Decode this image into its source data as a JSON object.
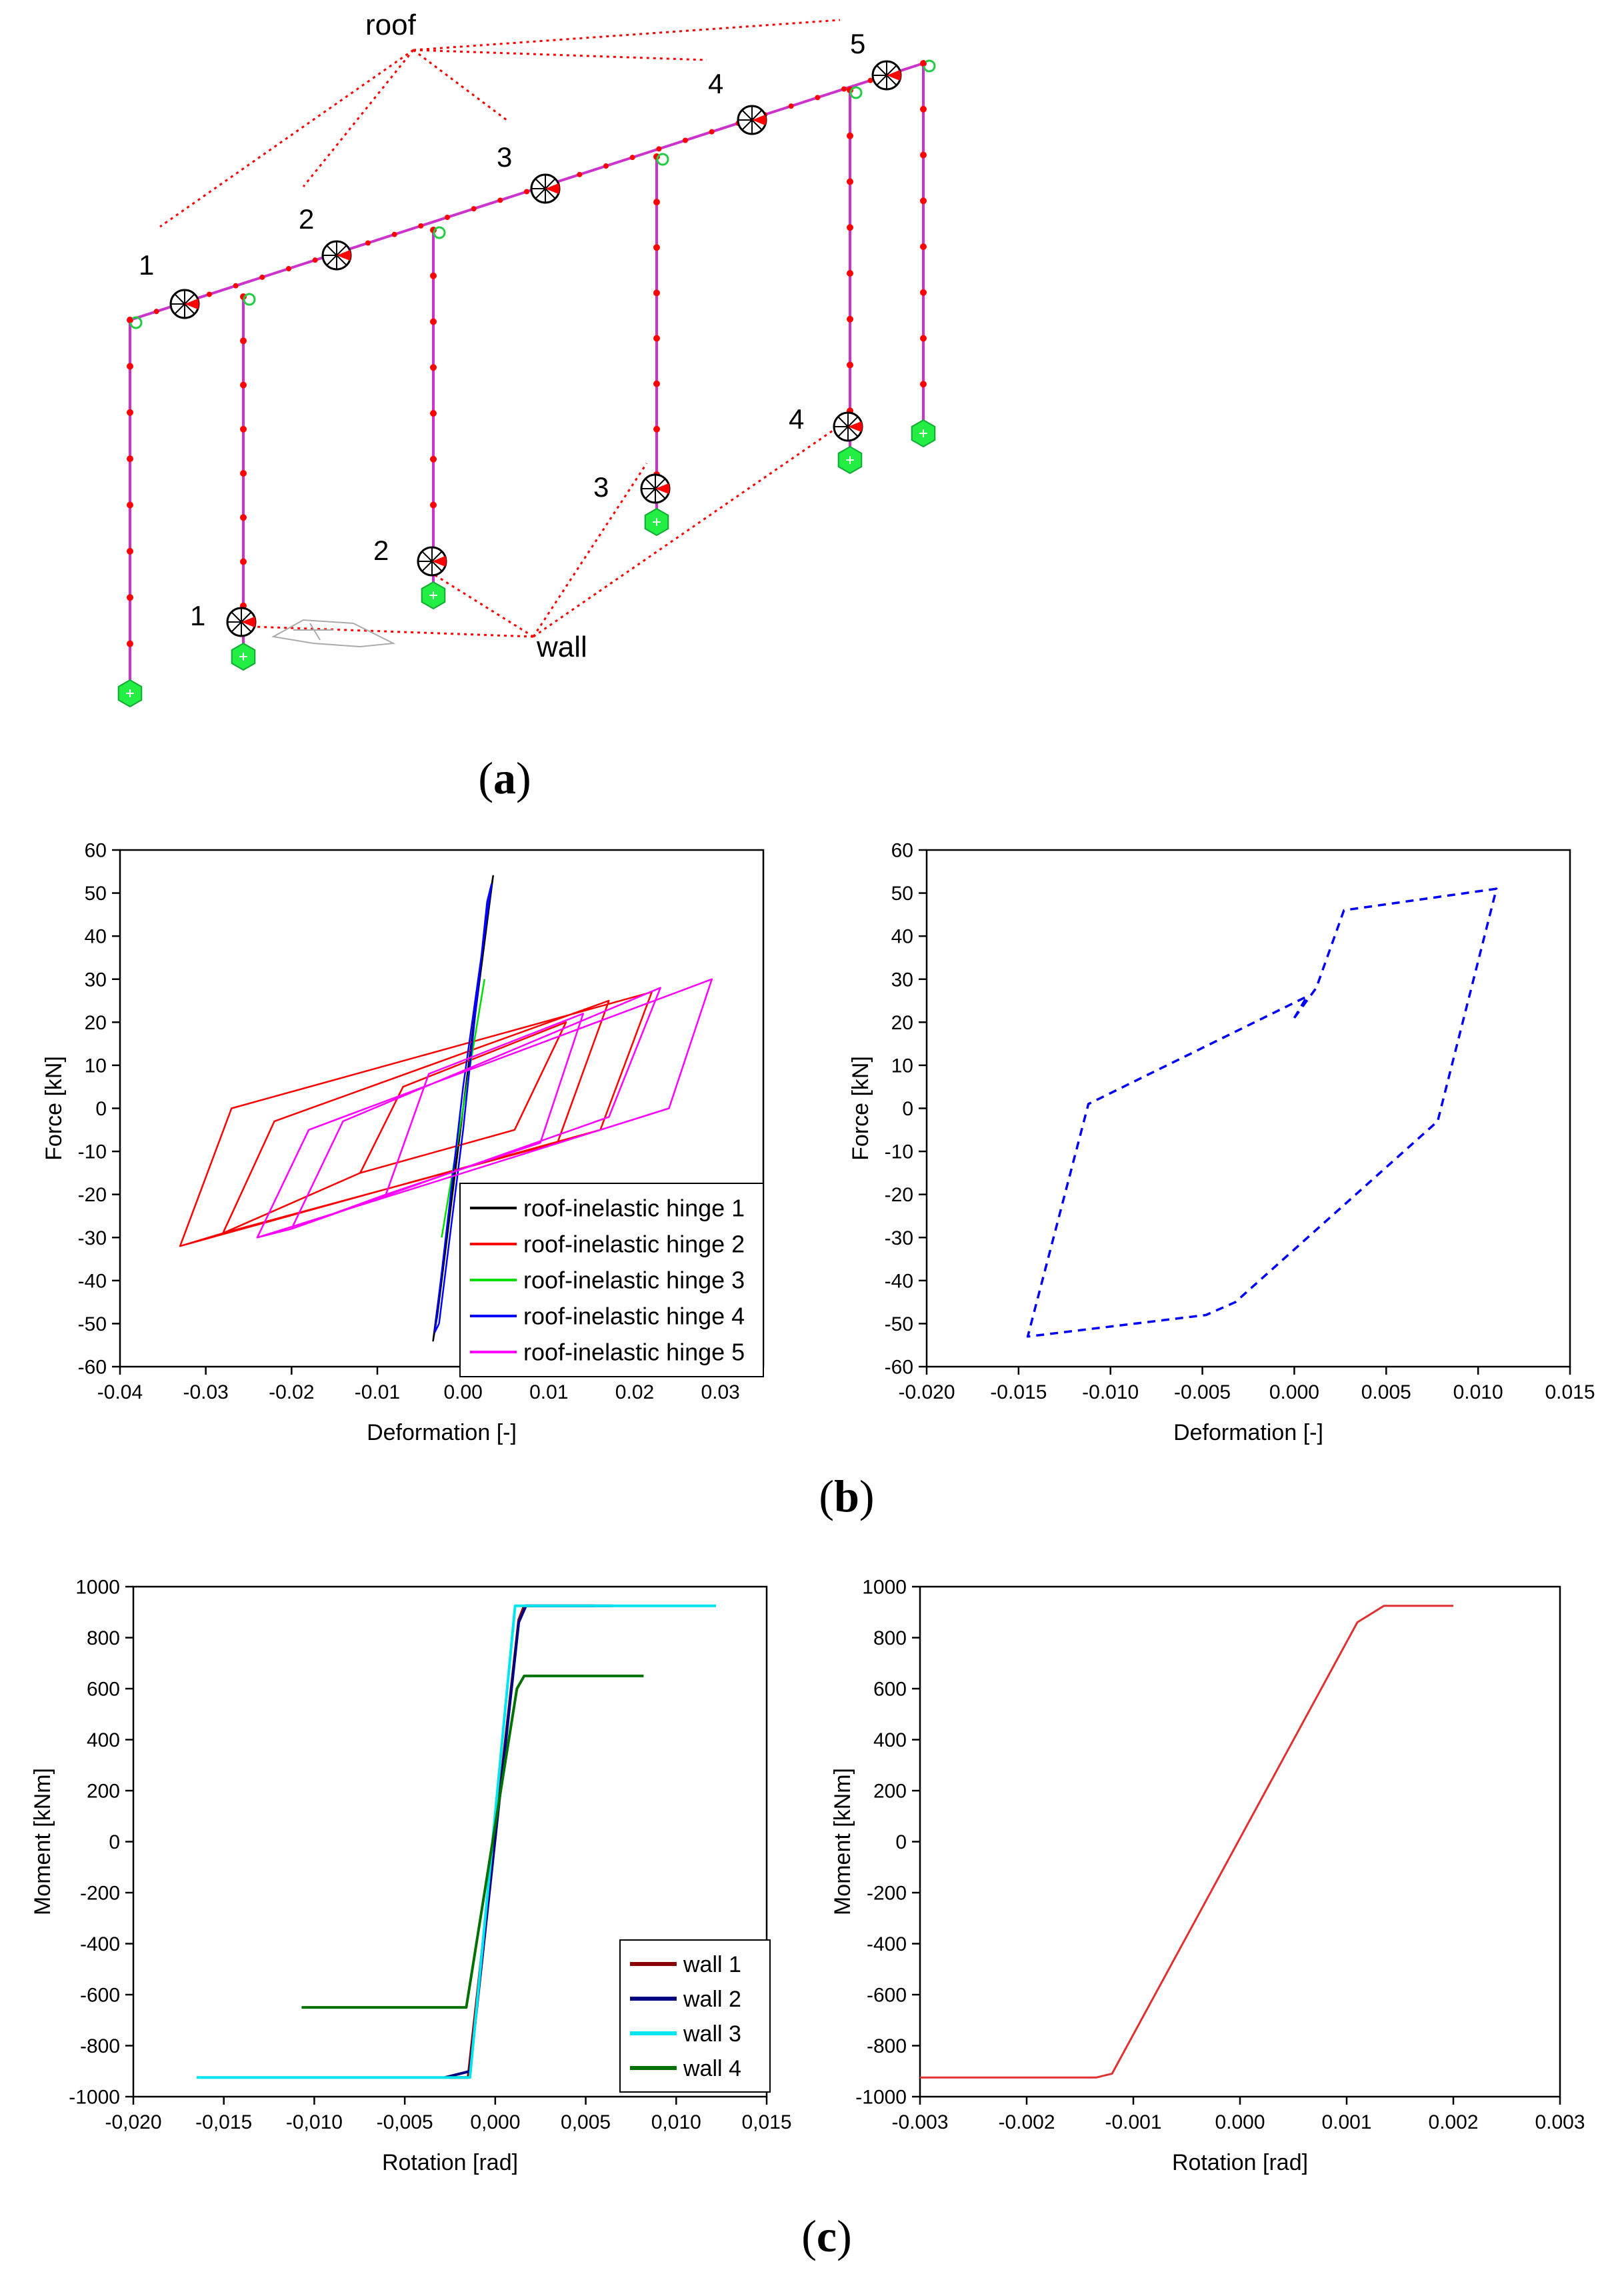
{
  "figure": {
    "panel_a": {
      "caption_open": "(",
      "caption_letter": "a",
      "caption_close": ")",
      "roof_label": "roof",
      "wall_label": "wall",
      "roof_hinge_labels": [
        "1",
        "2",
        "3",
        "4",
        "5"
      ],
      "wall_hinge_labels": [
        "1",
        "2",
        "3",
        "4"
      ]
    },
    "panel_b": {
      "caption_open": "(",
      "caption_letter": "b",
      "caption_close": ")"
    },
    "panel_c": {
      "caption_open": "(",
      "caption_letter": "c",
      "caption_close": ")"
    }
  },
  "colors": {
    "frame": "#cc33cc",
    "node": "#ff0000",
    "support": "#22ee44",
    "callout": "#ff0000",
    "hinge1": "#000000",
    "hinge2": "#ff0000",
    "hinge3": "#00dd00",
    "hinge4": "#0000ff",
    "hinge5": "#ff00ff",
    "wall1": "#8b0000",
    "wall2": "#000080",
    "wall3": "#00e5ee",
    "wall4": "#007000",
    "single_b": "#0000ff",
    "single_c": "#e03030"
  },
  "chart_data": [
    {
      "id": "b-left",
      "type": "line",
      "title": "",
      "xlabel": "Deformation [-]",
      "ylabel": "Force [kN]",
      "xlim": [
        -0.04,
        0.035
      ],
      "ylim": [
        -60,
        60
      ],
      "xticks": [
        -0.04,
        -0.03,
        -0.02,
        -0.01,
        0.0,
        0.01,
        0.02,
        0.03
      ],
      "xtick_labels": [
        "-0.04",
        "-0.03",
        "-0.02",
        "-0.01",
        "0.00",
        "0.01",
        "0.02",
        "0.03"
      ],
      "yticks": [
        -60,
        -50,
        -40,
        -30,
        -20,
        -10,
        0,
        10,
        20,
        30,
        40,
        50,
        60
      ],
      "ytick_labels": [
        "-60",
        "-50",
        "-40",
        "-30",
        "-20",
        "-10",
        "0",
        "10",
        "20",
        "30",
        "40",
        "50",
        "60"
      ],
      "legend_position": "bottom-right",
      "series": [
        {
          "name": "roof-inelastic hinge 1",
          "color": "#000000",
          "x": [
            -0.003,
            0.003,
            0.0035,
            -0.0035,
            -0.003
          ],
          "y": [
            -48,
            48,
            54,
            -54,
            -48
          ]
        },
        {
          "name": "roof-inelastic hinge 2",
          "color": "#ff0000",
          "x": [
            -0.033,
            -0.027,
            0.022,
            0.016,
            -0.033,
            -0.028,
            -0.022,
            0.017,
            0.011,
            -0.028,
            -0.012,
            -0.007,
            0.012,
            0.006,
            -0.012
          ],
          "y": [
            -32,
            0,
            27,
            -5,
            -32,
            -29,
            -3,
            25,
            -8,
            -29,
            -15,
            5,
            20,
            -5,
            -15
          ]
        },
        {
          "name": "roof-inelastic hinge 3",
          "color": "#00dd00",
          "x": [
            -0.0025,
            0.0025
          ],
          "y": [
            -30,
            30
          ]
        },
        {
          "name": "roof-inelastic hinge 4",
          "color": "#0000ff",
          "x": [
            -0.0028,
            0.0,
            0.0028,
            0.0033,
            0.0,
            -0.0033,
            -0.0028
          ],
          "y": [
            -50,
            -5,
            48,
            52,
            5,
            -52,
            -50
          ]
        },
        {
          "name": "roof-inelastic hinge 5",
          "color": "#ff00ff",
          "x": [
            -0.024,
            -0.018,
            0.029,
            0.024,
            -0.024,
            -0.02,
            -0.014,
            0.023,
            0.017,
            -0.02,
            -0.009,
            -0.004,
            0.014,
            0.009,
            -0.009
          ],
          "y": [
            -30,
            -5,
            30,
            0,
            -30,
            -28,
            -3,
            28,
            -2,
            -28,
            -20,
            8,
            22,
            -8,
            -20
          ]
        }
      ]
    },
    {
      "id": "b-right",
      "type": "line",
      "title": "",
      "xlabel": "Deformation [-]",
      "ylabel": "Force [kN]",
      "xlim": [
        -0.02,
        0.015
      ],
      "ylim": [
        -60,
        60
      ],
      "xticks": [
        -0.02,
        -0.015,
        -0.01,
        -0.005,
        0.0,
        0.005,
        0.01,
        0.015
      ],
      "xtick_labels": [
        "-0.020",
        "-0.015",
        "-0.010",
        "-0.005",
        "0.000",
        "0.005",
        "0.010",
        "0.015"
      ],
      "yticks": [
        -60,
        -50,
        -40,
        -30,
        -20,
        -10,
        0,
        10,
        20,
        30,
        40,
        50,
        60
      ],
      "ytick_labels": [
        "-60",
        "-50",
        "-40",
        "-30",
        "-20",
        "-10",
        "0",
        "10",
        "20",
        "30",
        "40",
        "50",
        "60"
      ],
      "series": [
        {
          "name": "",
          "color": "#0000ff",
          "dashed": true,
          "x": [
            0.0,
            0.0012,
            0.0027,
            0.011,
            0.0078,
            -0.0032,
            -0.0048,
            -0.0145,
            -0.0112,
            0.0007,
            0.0
          ],
          "y": [
            21,
            28,
            46,
            51,
            -3,
            -45,
            -48,
            -53,
            1,
            26,
            21
          ]
        }
      ]
    },
    {
      "id": "c-left",
      "type": "line",
      "title": "",
      "xlabel": "Rotation [rad]",
      "ylabel": "Moment [kNm]",
      "xlim": [
        -0.02,
        0.015
      ],
      "ylim": [
        -1000,
        1000
      ],
      "xticks": [
        -0.02,
        -0.015,
        -0.01,
        -0.005,
        0.0,
        0.005,
        0.01,
        0.015
      ],
      "xtick_labels": [
        "-0,020",
        "-0,015",
        "-0,010",
        "-0,005",
        "0,000",
        "0,005",
        "0,010",
        "0,015"
      ],
      "yticks": [
        -1000,
        -800,
        -600,
        -400,
        -200,
        0,
        200,
        400,
        600,
        800,
        1000
      ],
      "ytick_labels": [
        "-1000",
        "-800",
        "-600",
        "-400",
        "-200",
        "0",
        "200",
        "400",
        "600",
        "800",
        "1000"
      ],
      "legend_position": "bottom-right",
      "series": [
        {
          "name": "wall 1",
          "color": "#8b0000",
          "x": [
            -0.0025,
            -0.0015,
            0.0013,
            0.0016,
            0.0055
          ],
          "y": [
            -925,
            -925,
            870,
            925,
            925
          ]
        },
        {
          "name": "wall 2",
          "color": "#000080",
          "x": [
            -0.0028,
            -0.0014,
            0.0013,
            0.0017,
            0.0065
          ],
          "y": [
            -925,
            -900,
            860,
            925,
            925
          ]
        },
        {
          "name": "wall 3",
          "color": "#00e5ee",
          "x": [
            -0.0165,
            -0.0014,
            0.0011,
            0.0014,
            0.0122
          ],
          "y": [
            -925,
            -925,
            925,
            925,
            925
          ]
        },
        {
          "name": "wall 4",
          "color": "#007000",
          "x": [
            -0.0107,
            -0.0016,
            0.0012,
            0.0016,
            0.0082
          ],
          "y": [
            -650,
            -650,
            600,
            650,
            650
          ]
        }
      ]
    },
    {
      "id": "c-right",
      "type": "line",
      "title": "",
      "xlabel": "Rotation [rad]",
      "ylabel": "Moment [kNm]",
      "xlim": [
        -0.003,
        0.003
      ],
      "ylim": [
        -1000,
        1000
      ],
      "xticks": [
        -0.003,
        -0.002,
        -0.001,
        0.0,
        0.001,
        0.002,
        0.003
      ],
      "xtick_labels": [
        "-0.003",
        "-0.002",
        "-0.001",
        "0.000",
        "0.001",
        "0.002",
        "0.003"
      ],
      "yticks": [
        -1000,
        -800,
        -600,
        -400,
        -200,
        0,
        200,
        400,
        600,
        800,
        1000
      ],
      "ytick_labels": [
        "-1000",
        "-800",
        "-600",
        "-400",
        "-200",
        "0",
        "200",
        "400",
        "600",
        "800",
        "1000"
      ],
      "series": [
        {
          "name": "",
          "color": "#e03030",
          "x": [
            -0.003,
            -0.00135,
            -0.0012,
            0.0011,
            0.00135,
            0.002
          ],
          "y": [
            -925,
            -925,
            -910,
            860,
            925,
            925
          ]
        }
      ]
    }
  ]
}
